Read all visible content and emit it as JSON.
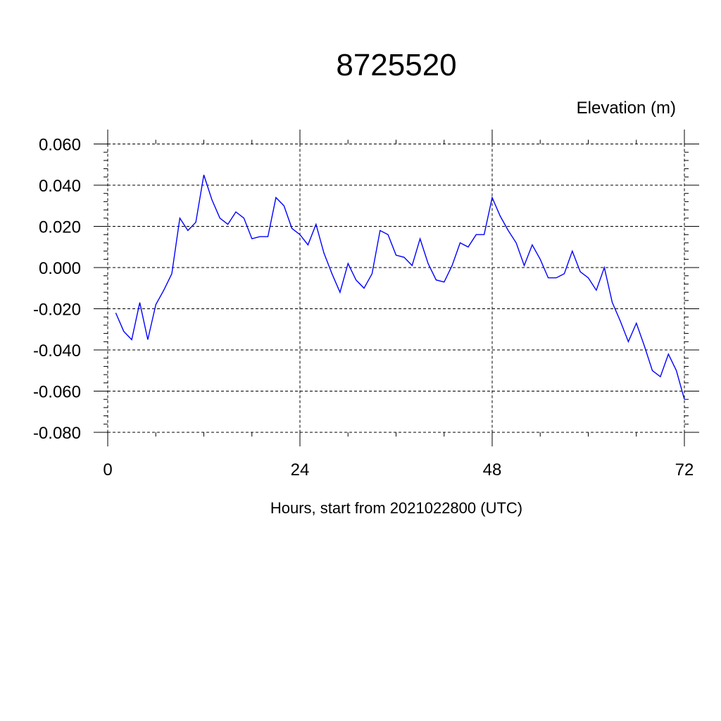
{
  "chart_data": {
    "type": "line",
    "title": "8725520",
    "ylabel": "Elevation (m)",
    "xlabel": "Hours, start from 2021022800 (UTC)",
    "xlim": [
      0,
      72
    ],
    "ylim": [
      -0.08,
      0.06
    ],
    "x_ticks": [
      0,
      24,
      48,
      72
    ],
    "x_tick_labels": [
      "0",
      "24",
      "48",
      "72"
    ],
    "y_ticks": [
      -0.08,
      -0.06,
      -0.04,
      -0.02,
      0.0,
      0.02,
      0.04,
      0.06
    ],
    "y_tick_labels": [
      "-0.080",
      "-0.060",
      "-0.040",
      "-0.020",
      "0.000",
      "0.020",
      "0.040",
      "0.060"
    ],
    "grid": true,
    "line_color": "#0000ff",
    "series": [
      {
        "x": [
          1,
          2,
          3,
          4,
          5,
          6,
          7,
          8,
          9,
          10,
          11,
          12,
          13,
          14,
          15,
          16,
          17,
          18,
          19,
          20,
          21,
          22,
          23,
          24,
          25,
          26,
          27,
          28,
          29,
          30,
          31,
          32,
          33,
          34,
          35,
          36,
          37,
          38,
          39,
          40,
          41,
          42,
          43,
          44,
          45,
          46,
          47,
          48,
          49,
          50,
          51,
          52,
          53,
          54,
          55,
          56,
          57,
          58,
          59,
          60,
          61,
          62,
          63,
          64,
          65,
          66,
          67,
          68,
          69,
          70,
          71,
          72
        ],
        "values": [
          -0.022,
          -0.031,
          -0.035,
          -0.017,
          -0.035,
          -0.018,
          -0.011,
          -0.003,
          0.024,
          0.018,
          0.022,
          0.045,
          0.033,
          0.024,
          0.021,
          0.027,
          0.024,
          0.014,
          0.015,
          0.015,
          0.034,
          0.03,
          0.019,
          0.016,
          0.011,
          0.021,
          0.007,
          -0.003,
          -0.012,
          0.002,
          -0.006,
          -0.01,
          -0.003,
          0.018,
          0.016,
          0.006,
          0.005,
          0.001,
          0.014,
          0.002,
          -0.006,
          -0.007,
          0.001,
          0.012,
          0.01,
          0.016,
          0.016,
          0.034,
          0.025,
          0.018,
          0.012,
          0.001,
          0.011,
          0.004,
          -0.005,
          -0.005,
          -0.003,
          0.008,
          -0.002,
          -0.005,
          -0.011,
          0.0,
          -0.017,
          -0.026,
          -0.036,
          -0.027,
          -0.038,
          -0.05,
          -0.053,
          -0.042,
          -0.05,
          -0.064
        ]
      }
    ]
  }
}
